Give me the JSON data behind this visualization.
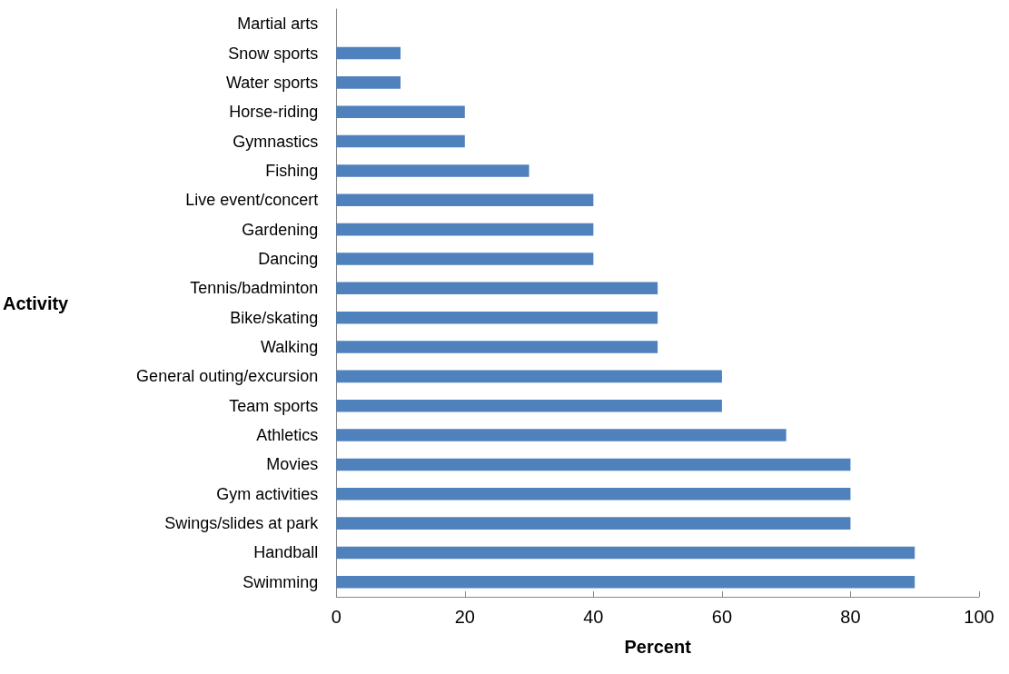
{
  "chart_data": {
    "type": "bar",
    "orientation": "horizontal",
    "xlabel": "Percent",
    "ylabel": "Activity",
    "categories": [
      "Martial arts",
      "Snow sports",
      "Water sports",
      "Horse-riding",
      "Gymnastics",
      "Fishing",
      "Live event/concert",
      "Gardening",
      "Dancing",
      "Tennis/badminton",
      "Bike/skating",
      "Walking",
      "General outing/excursion",
      "Team sports",
      "Athletics",
      "Movies",
      "Gym activities",
      "Swings/slides at park",
      "Handball",
      "Swimming"
    ],
    "values": [
      0,
      10,
      10,
      20,
      20,
      30,
      40,
      40,
      40,
      50,
      50,
      50,
      60,
      60,
      70,
      80,
      80,
      80,
      90,
      90
    ],
    "color": "#4f81bd",
    "xlim": [
      0,
      100
    ],
    "xticks": [
      0,
      20,
      40,
      60,
      80,
      100
    ],
    "grid": false
  }
}
